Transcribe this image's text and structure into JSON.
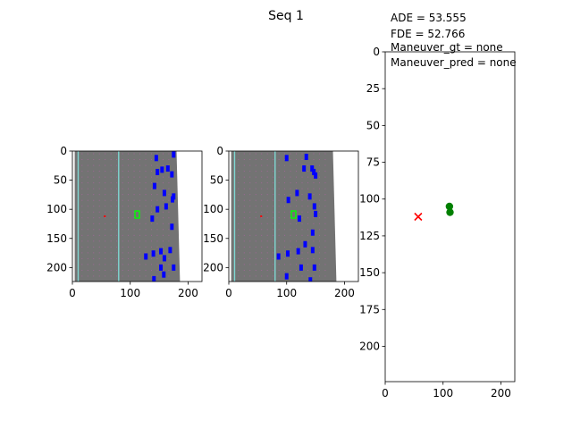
{
  "figure": {
    "title": "Seq 1",
    "metrics": [
      "ADE = 53.555",
      "FDE = 52.766",
      "Maneuver_gt = none",
      "Maneuver_pred = none"
    ]
  },
  "colors": {
    "road": "#737373",
    "lane_line": "#7fd6d2",
    "lane_dots": "#c060b0",
    "vehicle": "#0000ff",
    "ego_vehicle": "#00ff00",
    "ego_marker": "#ff0000",
    "gt_points": "#008000",
    "pred_marker": "#ff0000"
  },
  "chart_data": [
    {
      "type": "heatmap",
      "name": "bev-image-1",
      "content": "bird's-eye-view road raster with vehicles",
      "xlim": [
        0,
        224
      ],
      "ylim": [
        224,
        0
      ],
      "xticks": [
        "0",
        "100",
        "200"
      ],
      "yticks": [
        "0",
        "50",
        "100",
        "150",
        "200"
      ],
      "ego_position": [
        112,
        109
      ],
      "vehicles": [
        [
          145,
          12
        ],
        [
          175,
          6
        ],
        [
          172,
          40
        ],
        [
          155,
          32
        ],
        [
          165,
          30
        ],
        [
          147,
          36
        ],
        [
          159,
          72
        ],
        [
          142,
          60
        ],
        [
          175,
          78
        ],
        [
          173,
          83
        ],
        [
          138,
          116
        ],
        [
          147,
          100
        ],
        [
          162,
          95
        ],
        [
          172,
          130
        ],
        [
          140,
          176
        ],
        [
          127,
          181
        ],
        [
          153,
          172
        ],
        [
          159,
          184
        ],
        [
          169,
          170
        ],
        [
          175,
          200
        ],
        [
          153,
          200
        ],
        [
          141,
          220
        ],
        [
          158,
          212
        ]
      ]
    },
    {
      "type": "heatmap",
      "name": "bev-image-2",
      "content": "bird's-eye-view road raster with vehicles",
      "xlim": [
        0,
        224
      ],
      "ylim": [
        224,
        0
      ],
      "xticks": [
        "0",
        "100",
        "200"
      ],
      "yticks": [
        "0",
        "50",
        "100",
        "150",
        "200"
      ],
      "ego_position": [
        112,
        109
      ],
      "vehicles": [
        [
          100,
          12
        ],
        [
          134,
          10
        ],
        [
          144,
          30
        ],
        [
          130,
          30
        ],
        [
          150,
          42
        ],
        [
          147,
          36
        ],
        [
          118,
          72
        ],
        [
          103,
          84
        ],
        [
          140,
          78
        ],
        [
          148,
          95
        ],
        [
          122,
          116
        ],
        [
          150,
          108
        ],
        [
          145,
          140
        ],
        [
          132,
          160
        ],
        [
          102,
          176
        ],
        [
          86,
          181
        ],
        [
          120,
          172
        ],
        [
          145,
          170
        ],
        [
          148,
          200
        ],
        [
          125,
          200
        ],
        [
          141,
          222
        ],
        [
          100,
          215
        ]
      ]
    },
    {
      "type": "scatter",
      "name": "trajectory-plot",
      "xlim": [
        0,
        224
      ],
      "ylim": [
        224,
        0
      ],
      "xticks": [
        "0",
        "100",
        "200"
      ],
      "yticks": [
        "0",
        "25",
        "50",
        "75",
        "100",
        "125",
        "150",
        "175",
        "200"
      ],
      "series": [
        {
          "marker": "o",
          "color": "green",
          "points": [
            [
              111,
              105
            ],
            [
              112,
              109
            ]
          ]
        },
        {
          "marker": "x",
          "color": "red",
          "points": [
            [
              57,
              112
            ]
          ]
        }
      ]
    }
  ]
}
